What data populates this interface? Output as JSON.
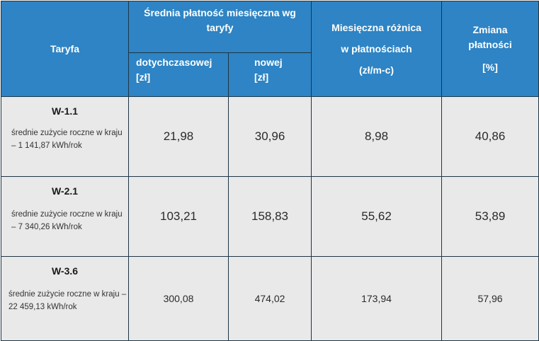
{
  "header": {
    "tariff": "Taryfa",
    "avg_payment": "Średnia płatność miesięczna wg taryfy",
    "previous": "dotychczasowej [zł]",
    "new": "nowej [zł]",
    "difference_line1": "Miesięczna różnica",
    "difference_line2": "w płatnościach",
    "difference_unit": "(zł/m-c)",
    "change_line1": "Zmiana",
    "change_line2": "płatności",
    "change_unit": "[%]"
  },
  "rows": [
    {
      "tariff": "W-1.1",
      "note": "średnie zużycie roczne w kraju – 1 141,87 kWh/rok",
      "previous": "21,98",
      "new": "30,96",
      "difference": "8,98",
      "change": "40,86"
    },
    {
      "tariff": "W-2.1",
      "note": "średnie zużycie roczne w kraju – 7 340,26 kWh/rok",
      "previous": "103,21",
      "new": "158,83",
      "difference": "55,62",
      "change": "53,89"
    },
    {
      "tariff": "W-3.6",
      "note": "średnie zużycie roczne w kraju – 22 459,13 kWh/rok",
      "previous": "300,08",
      "new": "474,02",
      "difference": "173,94",
      "change": "57,96"
    }
  ]
}
